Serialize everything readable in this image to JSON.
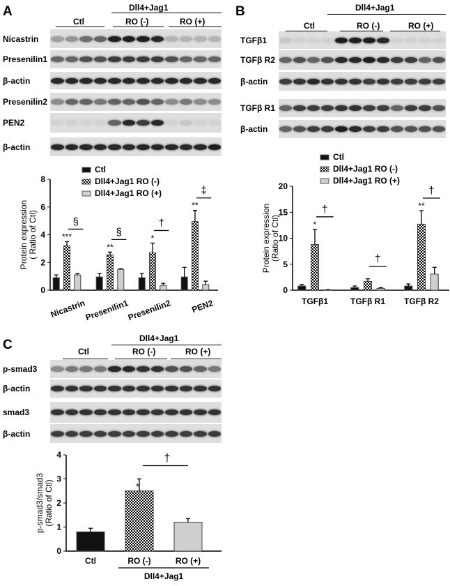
{
  "panels": {
    "a": "A",
    "b": "B",
    "c": "C"
  },
  "blots": {
    "a": {
      "treatment": "Dll4+Jag1",
      "groups": [
        "Ctl",
        "RO (-)",
        "RO (+)"
      ],
      "rows": [
        "Nicastrin",
        "Presenilin1",
        "β-actin",
        "Presenilin2",
        "PEN2",
        "β-actin"
      ]
    },
    "b": {
      "treatment": "Dll4+Jag1",
      "groups": [
        "Ctl",
        "RO (-)",
        "RO (+)"
      ],
      "rows": [
        "TGFβ1",
        "TGFβ R2",
        "β-actin",
        "TGFβ R1",
        "β-actin"
      ]
    },
    "c": {
      "treatment": "Dll4+Jag1",
      "groups": [
        "Ctl",
        "RO (-)",
        "RO (+)"
      ],
      "rows": [
        "p-smad3",
        "β-actin",
        "smad3",
        "β-actin"
      ]
    }
  },
  "colors": {
    "ctl": "#111111",
    "ro_minus": "checkerboard",
    "ro_plus": "#cfcfcf"
  },
  "chart_data": [
    {
      "type": "bar",
      "ylabel": "Protein expression\n( Ratio of Ctl)",
      "ylim": [
        0,
        8
      ],
      "yticks": [
        0,
        2,
        4,
        6,
        8
      ],
      "categories": [
        "Nicastrin",
        "Presenilin1",
        "Presenilin2",
        "PEN2"
      ],
      "legend": [
        "Ctl",
        "Dll4+Jag1  RO (-)",
        "Dll4+Jag1  RO (+)"
      ],
      "legend_position": "top",
      "series": [
        {
          "name": "Ctl",
          "values": [
            0.9,
            0.95,
            0.9,
            0.95
          ],
          "errors": [
            0.2,
            0.25,
            0.3,
            0.7
          ]
        },
        {
          "name": "Dll4+Jag1  RO (-)",
          "values": [
            3.2,
            2.55,
            2.7,
            4.95
          ],
          "errors": [
            0.3,
            0.2,
            0.7,
            0.8
          ]
        },
        {
          "name": "Dll4+Jag1  RO (+)",
          "values": [
            1.1,
            1.5,
            0.35,
            0.4
          ],
          "errors": [
            0.1,
            0.05,
            0.15,
            0.25
          ]
        }
      ],
      "stars": [
        "***",
        "**",
        "*",
        "**"
      ],
      "significance": [
        "§",
        "§",
        "†",
        "‡"
      ]
    },
    {
      "type": "bar",
      "ylabel": "Protein expression\n(Ratio of Ctl)",
      "ylim": [
        0,
        20
      ],
      "yticks": [
        0,
        5,
        10,
        15,
        20
      ],
      "categories": [
        "TGFβ1",
        "TGFβ R1",
        "TGFβ R2"
      ],
      "legend": [
        "Ctl",
        "Dll4+Jag1  RO (-)",
        "Dll4+Jag1  RO (+)"
      ],
      "legend_position": "top",
      "series": [
        {
          "name": "Ctl",
          "values": [
            0.8,
            0.5,
            0.8
          ],
          "errors": [
            0.3,
            0.3,
            0.4
          ]
        },
        {
          "name": "Dll4+Jag1  RO (-)",
          "values": [
            8.8,
            1.7,
            12.7
          ],
          "errors": [
            2.9,
            0.5,
            2.6
          ]
        },
        {
          "name": "Dll4+Jag1  RO (+)",
          "values": [
            0.05,
            0.35,
            3.1
          ],
          "errors": [
            0.05,
            0.15,
            1.3
          ]
        }
      ],
      "stars": [
        "*",
        "",
        "**"
      ],
      "significance": [
        "†",
        "†",
        "†"
      ]
    },
    {
      "type": "bar",
      "ylabel": "p-smad3/smad3\n(Ratio of Ctl)",
      "ylim": [
        0,
        4
      ],
      "yticks": [
        0,
        1,
        2,
        3,
        4
      ],
      "categories": [
        "Ctl",
        "RO (-)",
        "RO (+)"
      ],
      "group_label": "Dll4+Jag1",
      "values": [
        0.8,
        2.5,
        1.2
      ],
      "errors": [
        0.15,
        0.5,
        0.15
      ],
      "stars": [
        "",
        "*",
        ""
      ],
      "significance": "†"
    }
  ]
}
